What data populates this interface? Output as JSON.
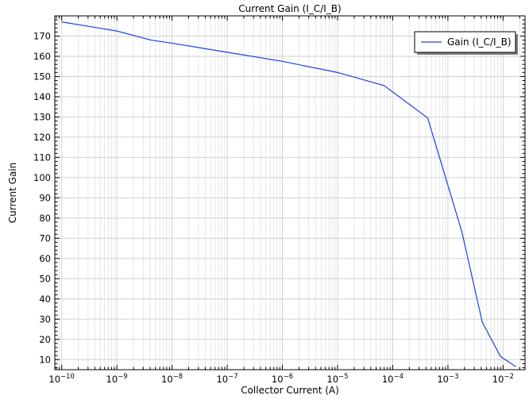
{
  "chart_data": {
    "type": "line",
    "title": "Current Gain (I_C/I_B)",
    "xlabel": "Collector Current (A)",
    "ylabel": "Current Gain",
    "x_scale": "log",
    "xlim": [
      7.5e-11,
      0.025
    ],
    "ylim": [
      5,
      180
    ],
    "x_ticks": [
      1e-10,
      1e-09,
      1e-08,
      1e-07,
      1e-06,
      1e-05,
      0.0001,
      0.001,
      0.01
    ],
    "x_tick_labels": [
      {
        "base": "10",
        "exp": "−10"
      },
      {
        "base": "10",
        "exp": "−9"
      },
      {
        "base": "10",
        "exp": "−8"
      },
      {
        "base": "10",
        "exp": "−7"
      },
      {
        "base": "10",
        "exp": "−6"
      },
      {
        "base": "10",
        "exp": "−5"
      },
      {
        "base": "10",
        "exp": "−4"
      },
      {
        "base": "10",
        "exp": "−3"
      },
      {
        "base": "10",
        "exp": "−2"
      }
    ],
    "y_ticks": [
      10,
      20,
      30,
      40,
      50,
      60,
      70,
      80,
      90,
      100,
      110,
      120,
      130,
      140,
      150,
      160,
      170
    ],
    "grid": true,
    "legend_position": "top-right",
    "series": [
      {
        "name": "Gain (I_C/I_B)",
        "color": "#1f3fe0",
        "x": [
          1e-10,
          1e-09,
          4.2e-09,
          1e-08,
          1e-07,
          1e-06,
          1e-05,
          7e-05,
          0.00043,
          0.0018,
          0.0042,
          0.009,
          0.017
        ],
        "y": [
          177,
          172.5,
          168,
          166.5,
          162,
          157.5,
          152,
          145.5,
          129.5,
          73,
          28.5,
          11.5,
          6.5
        ]
      }
    ]
  }
}
